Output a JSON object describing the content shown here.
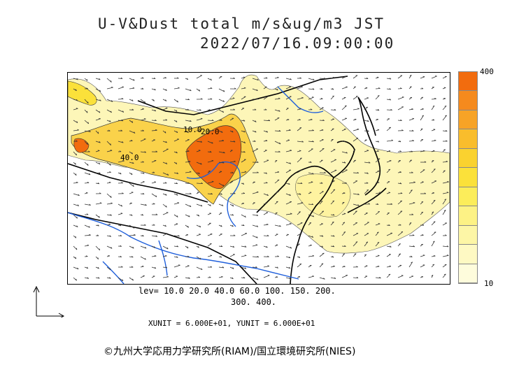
{
  "header": {
    "title": "U-V&Dust total m/s&ug/m3 JST",
    "datetime": "2022/07/16.09:00:00"
  },
  "legend": {
    "max_label": "400",
    "min_label": "10",
    "colors": [
      "#f26c0e",
      "#f58a1d",
      "#f7a326",
      "#f9bd2c",
      "#fad22f",
      "#fbe13a",
      "#fced5a",
      "#fdf285",
      "#fdf6a6",
      "#fef9c3",
      "#fefcdc"
    ]
  },
  "levels": {
    "line1": "lev= 10.0 20.0 40.0 60.0 100. 150. 200.",
    "line2": "300. 400."
  },
  "units": "XUNIT = 6.000E+01, YUNIT = 6.000E+01",
  "credit": "©九州大学応用力学研究所(RIAM)/国立環境研究所(NIES)",
  "map": {
    "contour_labels": [
      "10.0",
      "20.0",
      "40.0"
    ],
    "colors": {
      "coast": "#000000",
      "rivers": "#1f5fdb",
      "dust_low": "#fdf6b8",
      "dust_mid": "#f7d055",
      "dust_high": "#f26c0e"
    }
  }
}
